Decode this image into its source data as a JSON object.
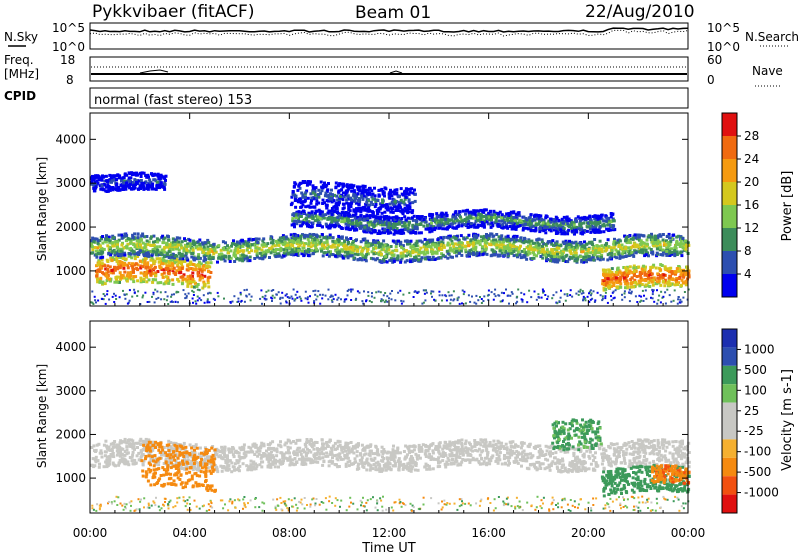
{
  "header": {
    "station": "Pykkvibaer (fitACF)",
    "beam": "Beam 01",
    "date": "22/Aug/2010"
  },
  "strips": {
    "nsky_label": "N.Sky",
    "nsearch_label": "N.Search",
    "noise_ticks_left": [
      "10^5",
      "10^0"
    ],
    "noise_ticks_right": [
      "10^5",
      "10^0"
    ],
    "freq_label_1": "Freq.",
    "freq_label_2": "[MHz]",
    "freq_ticks": [
      "18",
      "8"
    ],
    "nave_label": "Nave",
    "nave_ticks": [
      "60",
      "0"
    ],
    "cpid_label": "CPID",
    "cpid_text": "normal (fast stereo) 153"
  },
  "colors": {
    "power_scale": [
      "#0000ee",
      "#2d4fb0",
      "#3c8c5a",
      "#7ec850",
      "#d4c81e",
      "#f59a10",
      "#f06a10",
      "#e01010"
    ],
    "velocity_scale": [
      "#e01010",
      "#f25010",
      "#f58a10",
      "#f5b030",
      "#c8c8c4",
      "#c8c8c4",
      "#6fc05a",
      "#3c9a5a",
      "#2d4fb0",
      "#1c2fb0"
    ],
    "ground_scatter": "#c8c8c4"
  },
  "chart_data": [
    {
      "type": "heatmap",
      "title": "",
      "quantity": "Power",
      "xlabel": "",
      "ylabel": "Slant Range [km]",
      "x_ticks": [
        "00:00",
        "04:00",
        "08:00",
        "12:00",
        "16:00",
        "20:00",
        "00:00"
      ],
      "xlim_hours": [
        0,
        24
      ],
      "ylim": [
        200,
        4600
      ],
      "y_ticks": [
        1000,
        2000,
        3000,
        4000
      ],
      "colorbar": {
        "label": "Power [dB]",
        "ticks": [
          4,
          8,
          12,
          16,
          20,
          24,
          28
        ],
        "range": [
          0,
          32
        ]
      },
      "features": [
        {
          "start_h": 0.2,
          "end_h": 4.8,
          "range_km": 1000,
          "width_km": 300,
          "value_db": 28
        },
        {
          "start_h": 0.0,
          "end_h": 24.0,
          "range_km": 1550,
          "width_km": 250,
          "value_db": 18
        },
        {
          "start_h": 8.0,
          "end_h": 21.0,
          "range_km": 2150,
          "width_km": 200,
          "value_db": 12
        },
        {
          "start_h": 20.5,
          "end_h": 24.0,
          "range_km": 850,
          "width_km": 250,
          "value_db": 28
        },
        {
          "start_h": 0.0,
          "end_h": 3.0,
          "range_km": 3000,
          "width_km": 200,
          "value_db": 6
        },
        {
          "start_h": 8.0,
          "end_h": 13.0,
          "range_km": 2700,
          "width_km": 300,
          "value_db": 8
        }
      ]
    },
    {
      "type": "heatmap",
      "title": "",
      "quantity": "Velocity",
      "xlabel": "Time UT",
      "ylabel": "Slant Range [km]",
      "x_ticks": [
        "00:00",
        "04:00",
        "08:00",
        "12:00",
        "16:00",
        "20:00",
        "00:00"
      ],
      "xlim_hours": [
        0,
        24
      ],
      "ylim": [
        200,
        4600
      ],
      "y_ticks": [
        1000,
        2000,
        3000,
        4000
      ],
      "colorbar": {
        "label": "Velocity [m s-1]",
        "ticks": [
          -1000,
          -500,
          -100,
          -25,
          25,
          100,
          500,
          1000
        ]
      },
      "features": [
        {
          "start_h": 0.0,
          "end_h": 24.0,
          "range_km": 1550,
          "width_km": 300,
          "value_ms": 0
        },
        {
          "start_h": 2.0,
          "end_h": 5.0,
          "range_km": 1300,
          "width_km": 500,
          "value_ms": -300
        },
        {
          "start_h": 18.5,
          "end_h": 20.5,
          "range_km": 2100,
          "width_km": 350,
          "value_ms": 150
        },
        {
          "start_h": 20.5,
          "end_h": 24.0,
          "range_km": 950,
          "width_km": 300,
          "value_ms": 200
        },
        {
          "start_h": 22.5,
          "end_h": 24.0,
          "range_km": 1050,
          "width_km": 200,
          "value_ms": -400
        }
      ]
    }
  ]
}
